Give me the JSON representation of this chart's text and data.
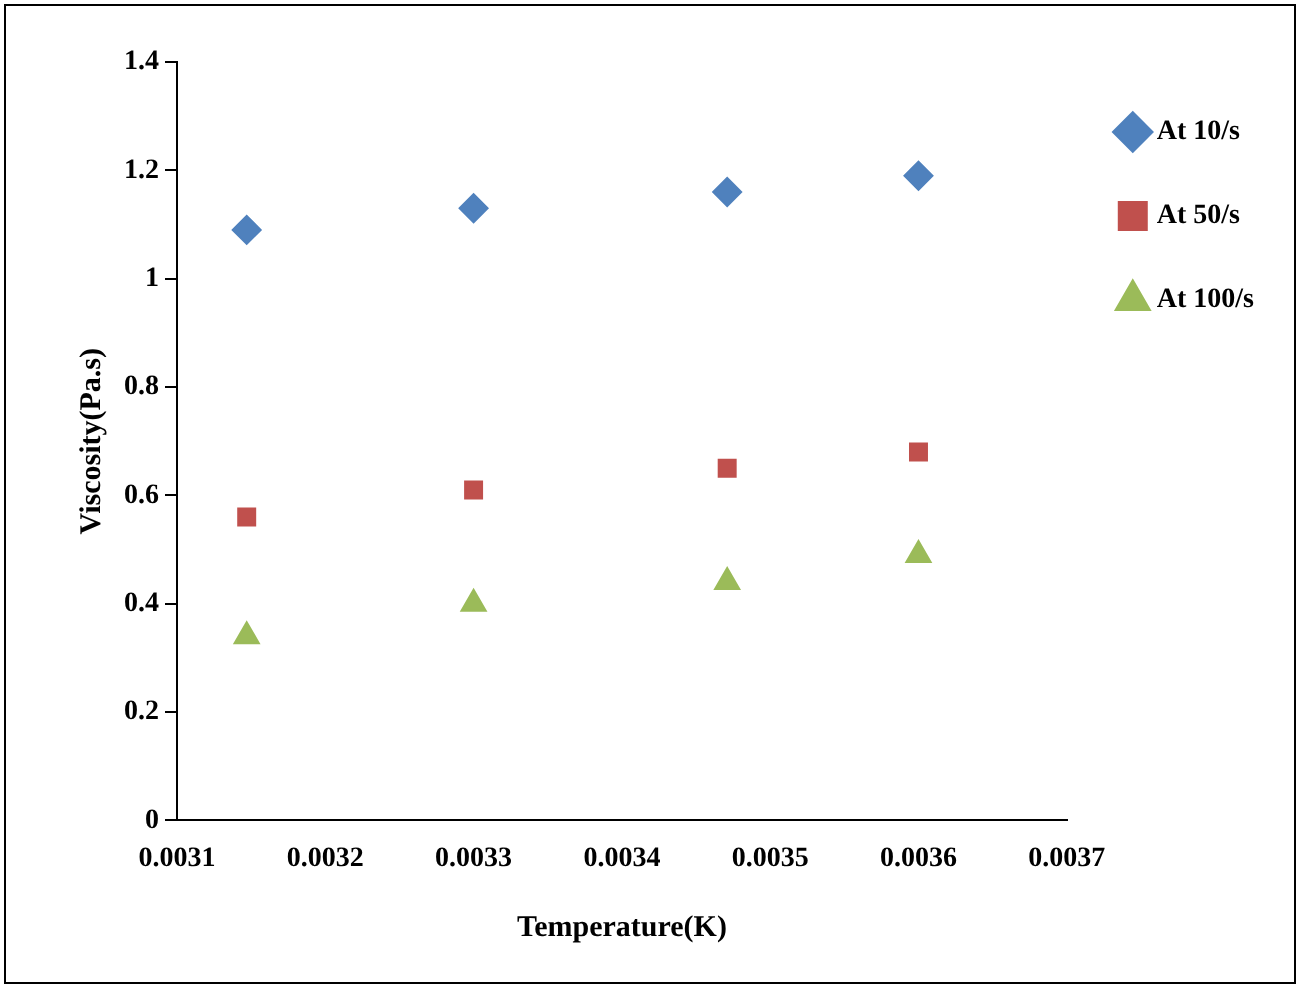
{
  "chart_data": {
    "type": "scatter",
    "xlabel": "Temperature(K)",
    "ylabel": "Viscosity(Pa.s)",
    "x": [
      0.003147,
      0.0033,
      0.003471,
      0.0036
    ],
    "series": [
      {
        "name": "At 10/s",
        "color": "#4f81bd",
        "marker": "diamond",
        "values": [
          1.09,
          1.13,
          1.16,
          1.19
        ]
      },
      {
        "name": "At 50/s",
        "color": "#c0504d",
        "marker": "square",
        "values": [
          0.56,
          0.61,
          0.65,
          0.68
        ]
      },
      {
        "name": "At 100/s",
        "color": "#9bbb59",
        "marker": "triangle",
        "values": [
          0.34,
          0.4,
          0.44,
          0.49
        ]
      }
    ],
    "xlim": [
      0.0031,
      0.0037
    ],
    "xticks": [
      0.0031,
      0.0032,
      0.0033,
      0.0034,
      0.0035,
      0.0036,
      0.0037
    ],
    "ylim": [
      0,
      1.4
    ],
    "yticks": [
      0,
      0.2,
      0.4,
      0.6,
      0.8,
      1,
      1.2,
      1.4
    ],
    "grid": false,
    "legend": "right"
  }
}
